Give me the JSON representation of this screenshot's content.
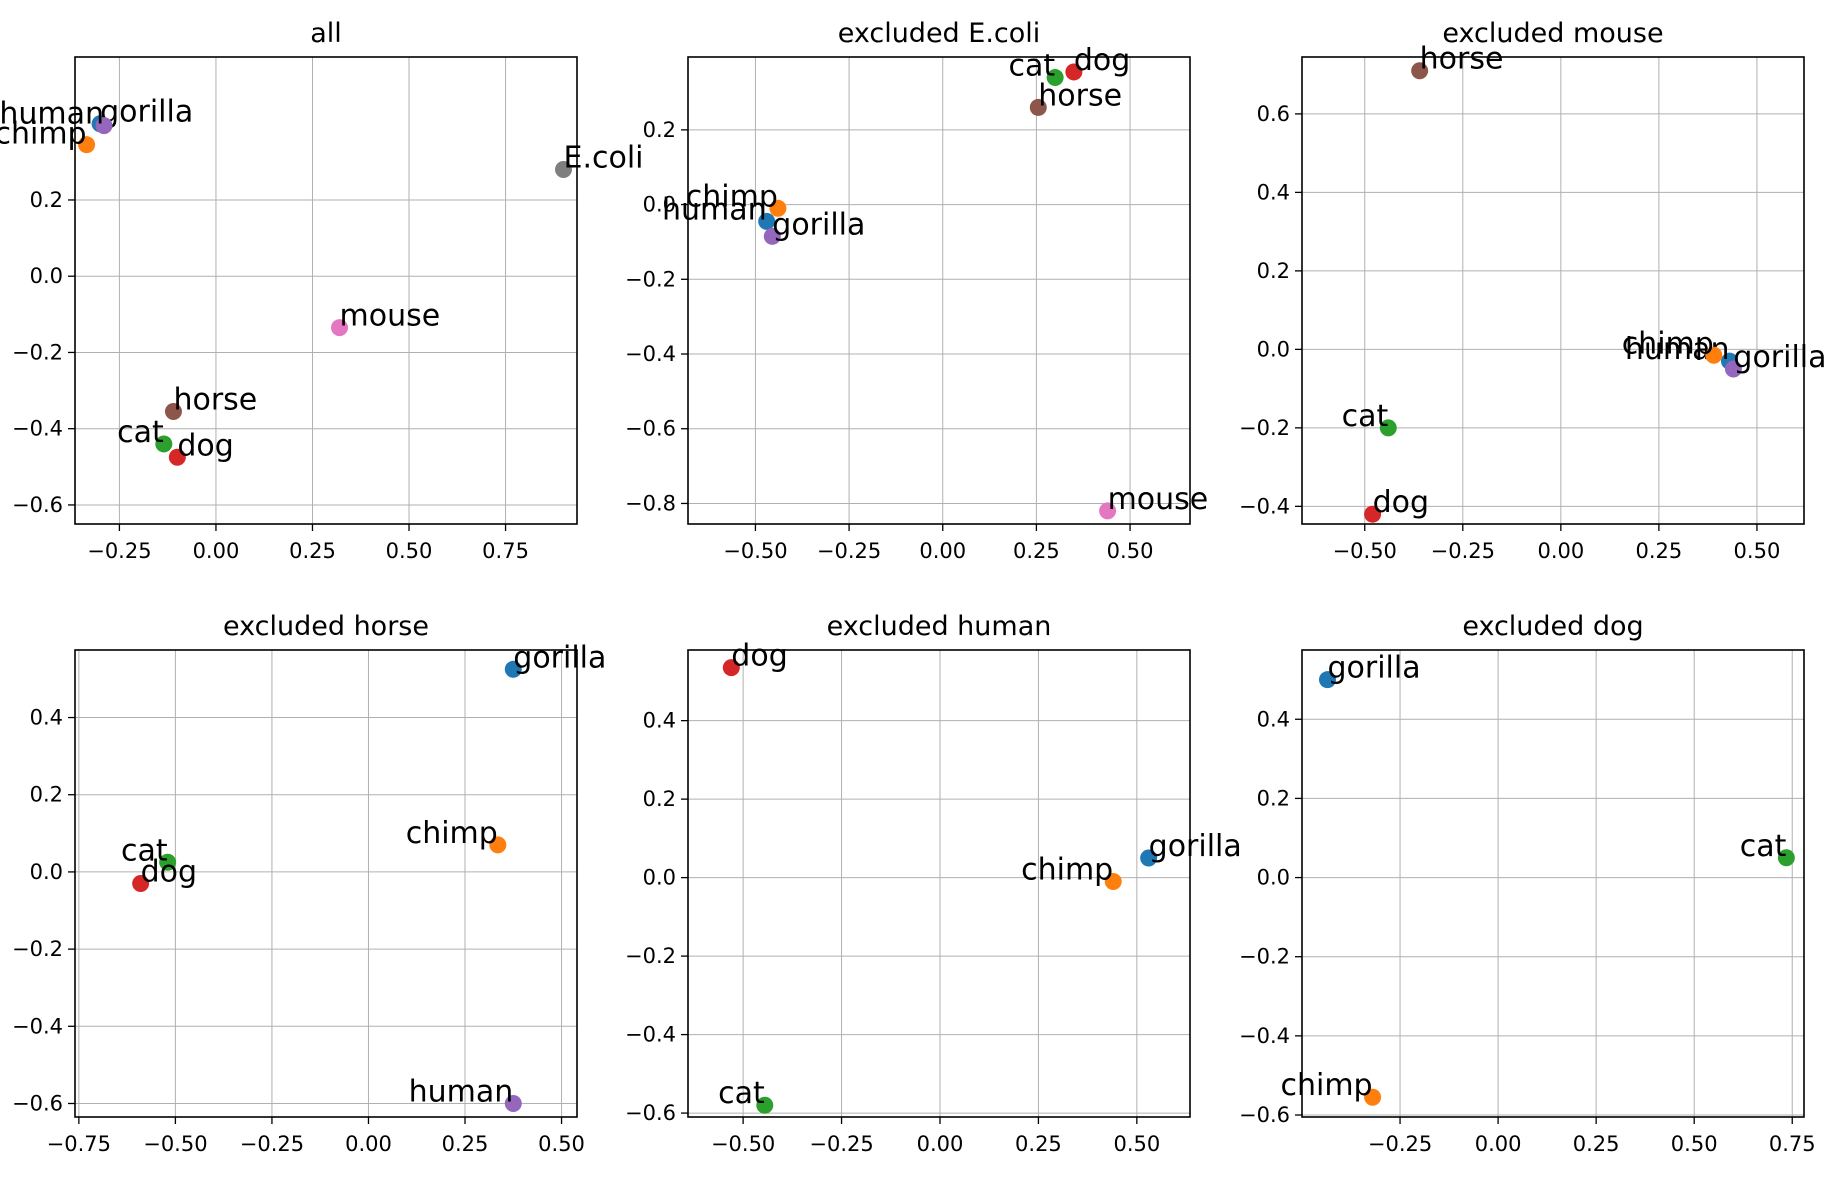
{
  "chart_data": [
    {
      "type": "scatter",
      "title": "all",
      "grid": true,
      "xlim": [
        -0.365,
        0.935
      ],
      "ylim": [
        -0.65,
        0.575
      ],
      "xticks": [
        -0.25,
        0.0,
        0.25,
        0.5,
        0.75
      ],
      "xtick_labels": [
        "−0.25",
        "0.00",
        "0.25",
        "0.50",
        "0.75"
      ],
      "yticks": [
        -0.6,
        -0.4,
        -0.2,
        0.0,
        0.2
      ],
      "ytick_labels": [
        "−0.6",
        "−0.4",
        "−0.2",
        "0.0",
        "0.2"
      ],
      "points": [
        {
          "label": "gorilla",
          "x": -0.3,
          "y": 0.4,
          "color": "#1f77b4"
        },
        {
          "label": "chimp",
          "x": -0.335,
          "y": 0.345,
          "color": "#ff7f0e"
        },
        {
          "label": "cat",
          "x": -0.135,
          "y": -0.44,
          "color": "#2ca02c"
        },
        {
          "label": "dog",
          "x": -0.1,
          "y": -0.475,
          "color": "#d62728"
        },
        {
          "label": "human",
          "x": -0.29,
          "y": 0.395,
          "color": "#9467bd"
        },
        {
          "label": "horse",
          "x": -0.11,
          "y": -0.355,
          "color": "#8c564b"
        },
        {
          "label": "mouse",
          "x": 0.32,
          "y": -0.135,
          "color": "#e377c2"
        },
        {
          "label": "E.coli",
          "x": 0.9,
          "y": 0.28,
          "color": "#7f7f7f"
        }
      ]
    },
    {
      "type": "scatter",
      "title": "excluded E.coli",
      "grid": true,
      "xlim": [
        -0.68,
        0.66
      ],
      "ylim": [
        -0.855,
        0.395
      ],
      "xticks": [
        -0.5,
        -0.25,
        0.0,
        0.25,
        0.5
      ],
      "xtick_labels": [
        "−0.50",
        "−0.25",
        "0.00",
        "0.25",
        "0.50"
      ],
      "yticks": [
        -0.8,
        -0.6,
        -0.4,
        -0.2,
        0.0,
        0.2
      ],
      "ytick_labels": [
        "−0.8",
        "−0.6",
        "−0.4",
        "−0.2",
        "0.0",
        "0.2"
      ],
      "points": [
        {
          "label": "human",
          "x": -0.47,
          "y": -0.045,
          "color": "#1f77b4"
        },
        {
          "label": "chimp",
          "x": -0.44,
          "y": -0.01,
          "color": "#ff7f0e"
        },
        {
          "label": "cat",
          "x": 0.3,
          "y": 0.34,
          "color": "#2ca02c"
        },
        {
          "label": "dog",
          "x": 0.35,
          "y": 0.355,
          "color": "#d62728"
        },
        {
          "label": "gorilla",
          "x": -0.455,
          "y": -0.085,
          "color": "#9467bd"
        },
        {
          "label": "horse",
          "x": 0.255,
          "y": 0.26,
          "color": "#8c564b"
        },
        {
          "label": "mouse",
          "x": 0.44,
          "y": -0.82,
          "color": "#e377c2"
        }
      ]
    },
    {
      "type": "scatter",
      "title": "excluded mouse",
      "grid": true,
      "xlim": [
        -0.66,
        0.62
      ],
      "ylim": [
        -0.445,
        0.745
      ],
      "xticks": [
        -0.5,
        -0.25,
        0.0,
        0.25,
        0.5
      ],
      "xtick_labels": [
        "−0.50",
        "−0.25",
        "0.00",
        "0.25",
        "0.50"
      ],
      "yticks": [
        -0.4,
        -0.2,
        0.0,
        0.2,
        0.4,
        0.6
      ],
      "ytick_labels": [
        "−0.4",
        "−0.2",
        "0.0",
        "0.2",
        "0.4",
        "0.6"
      ],
      "points": [
        {
          "label": "human",
          "x": 0.43,
          "y": -0.03,
          "color": "#1f77b4"
        },
        {
          "label": "chimp",
          "x": 0.39,
          "y": -0.015,
          "color": "#ff7f0e"
        },
        {
          "label": "cat",
          "x": -0.44,
          "y": -0.2,
          "color": "#2ca02c"
        },
        {
          "label": "dog",
          "x": -0.48,
          "y": -0.42,
          "color": "#d62728"
        },
        {
          "label": "gorilla",
          "x": 0.44,
          "y": -0.05,
          "color": "#9467bd"
        },
        {
          "label": "horse",
          "x": -0.36,
          "y": 0.71,
          "color": "#8c564b"
        }
      ]
    },
    {
      "type": "scatter",
      "title": "excluded horse",
      "grid": true,
      "xlim": [
        -0.76,
        0.54
      ],
      "ylim": [
        -0.635,
        0.575
      ],
      "xticks": [
        -0.75,
        -0.5,
        -0.25,
        0.0,
        0.25,
        0.5
      ],
      "xtick_labels": [
        "−0.75",
        "−0.50",
        "−0.25",
        "0.00",
        "0.25",
        "0.50"
      ],
      "yticks": [
        -0.6,
        -0.4,
        -0.2,
        0.0,
        0.2,
        0.4
      ],
      "ytick_labels": [
        "−0.6",
        "−0.4",
        "−0.2",
        "0.0",
        "0.2",
        "0.4"
      ],
      "points": [
        {
          "label": "gorilla",
          "x": 0.375,
          "y": 0.525,
          "color": "#1f77b4"
        },
        {
          "label": "chimp",
          "x": 0.335,
          "y": 0.07,
          "color": "#ff7f0e"
        },
        {
          "label": "cat",
          "x": -0.52,
          "y": 0.025,
          "color": "#2ca02c"
        },
        {
          "label": "dog",
          "x": -0.59,
          "y": -0.03,
          "color": "#d62728"
        },
        {
          "label": "human",
          "x": 0.375,
          "y": -0.6,
          "color": "#9467bd"
        }
      ]
    },
    {
      "type": "scatter",
      "title": "excluded human",
      "grid": true,
      "xlim": [
        -0.64,
        0.635
      ],
      "ylim": [
        -0.61,
        0.58
      ],
      "xticks": [
        -0.5,
        -0.25,
        0.0,
        0.25,
        0.5
      ],
      "xtick_labels": [
        "−0.50",
        "−0.25",
        "0.00",
        "0.25",
        "0.50"
      ],
      "yticks": [
        -0.6,
        -0.4,
        -0.2,
        0.0,
        0.2,
        0.4
      ],
      "ytick_labels": [
        "−0.6",
        "−0.4",
        "−0.2",
        "0.0",
        "0.2",
        "0.4"
      ],
      "points": [
        {
          "label": "gorilla",
          "x": 0.53,
          "y": 0.05,
          "color": "#1f77b4"
        },
        {
          "label": "chimp",
          "x": 0.44,
          "y": -0.01,
          "color": "#ff7f0e"
        },
        {
          "label": "cat",
          "x": -0.445,
          "y": -0.58,
          "color": "#2ca02c"
        },
        {
          "label": "dog",
          "x": -0.53,
          "y": 0.535,
          "color": "#d62728"
        }
      ]
    },
    {
      "type": "scatter",
      "title": "excluded dog",
      "grid": true,
      "xlim": [
        -0.5,
        0.78
      ],
      "ylim": [
        -0.605,
        0.575
      ],
      "xticks": [
        -0.25,
        0.0,
        0.25,
        0.5,
        0.75
      ],
      "xtick_labels": [
        "−0.25",
        "0.00",
        "0.25",
        "0.50",
        "0.75"
      ],
      "yticks": [
        -0.6,
        -0.4,
        -0.2,
        0.0,
        0.2,
        0.4
      ],
      "ytick_labels": [
        "−0.6",
        "−0.4",
        "−0.2",
        "0.0",
        "0.2",
        "0.4"
      ],
      "points": [
        {
          "label": "gorilla",
          "x": -0.435,
          "y": 0.5,
          "color": "#1f77b4"
        },
        {
          "label": "chimp",
          "x": -0.32,
          "y": -0.555,
          "color": "#ff7f0e"
        },
        {
          "label": "cat",
          "x": 0.735,
          "y": 0.05,
          "color": "#2ca02c"
        }
      ]
    }
  ]
}
